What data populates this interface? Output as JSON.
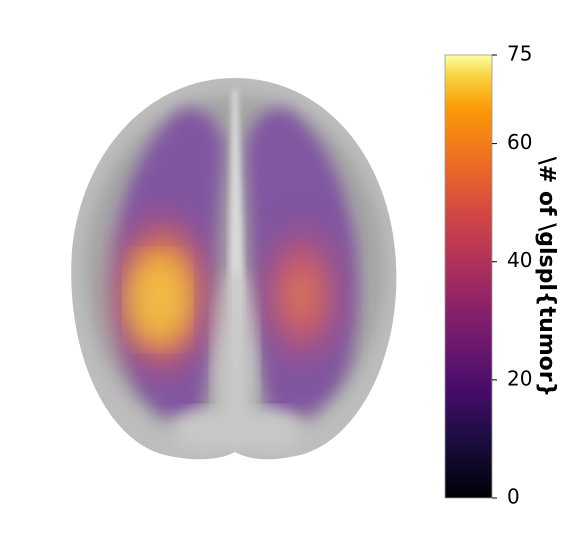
{
  "chart_data": {
    "type": "heatmap",
    "colormap": "inferno",
    "colorbar_label": "\\# of \\glspl{tumor}",
    "clim": [
      0,
      75
    ],
    "cticks": [
      0,
      20,
      40,
      60,
      75
    ]
  }
}
